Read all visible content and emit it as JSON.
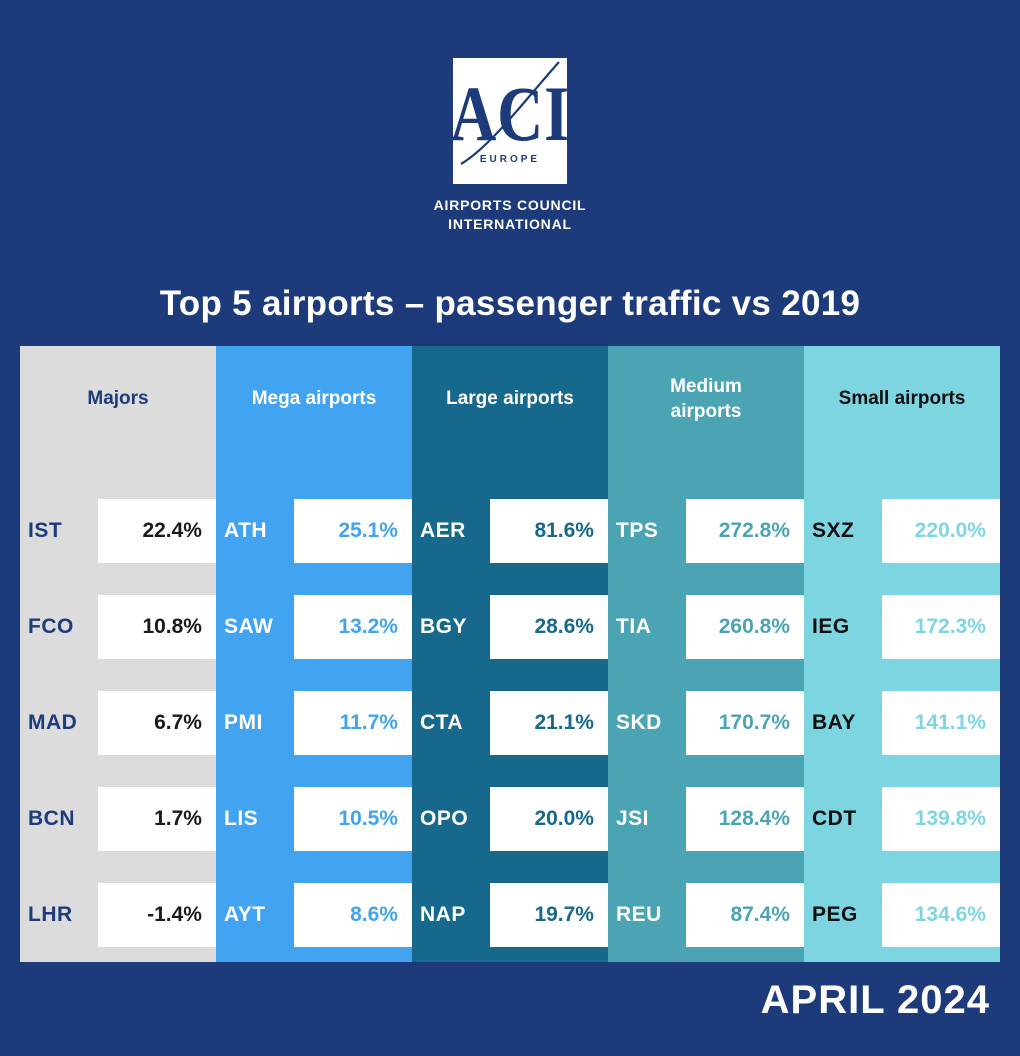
{
  "background_color": "#1d3a7a",
  "logo": {
    "acronym": "ACI",
    "region": "EUROPE",
    "caption_line1": "AIRPORTS COUNCIL",
    "caption_line2": "INTERNATIONAL"
  },
  "title": "Top 5 airports – passenger traffic vs 2019",
  "footer": "APRIL 2024",
  "chart_data": {
    "type": "table",
    "title": "Top 5 airports – passenger traffic vs 2019",
    "period": "APRIL 2024",
    "groups": [
      {
        "label": "Majors",
        "color": "#dcdcdc",
        "header_text_color": "#1d3a7a",
        "code_text_color": "#1d3a7a",
        "value_text_color": "#1a1a1a",
        "rows": [
          {
            "code": "IST",
            "value": "22.4%"
          },
          {
            "code": "FCO",
            "value": "10.8%"
          },
          {
            "code": "MAD",
            "value": "6.7%"
          },
          {
            "code": "BCN",
            "value": "1.7%"
          },
          {
            "code": "LHR",
            "value": "-1.4%"
          }
        ]
      },
      {
        "label": "Mega airports",
        "color": "#42a4f0",
        "header_text_color": "#ffffff",
        "code_text_color": "#ffffff",
        "value_text_color": "#42a4f0",
        "rows": [
          {
            "code": "ATH",
            "value": "25.1%"
          },
          {
            "code": "SAW",
            "value": "13.2%"
          },
          {
            "code": "PMI",
            "value": "11.7%"
          },
          {
            "code": "LIS",
            "value": "10.5%"
          },
          {
            "code": "AYT",
            "value": "8.6%"
          }
        ]
      },
      {
        "label": "Large airports",
        "color": "#16688c",
        "header_text_color": "#ffffff",
        "code_text_color": "#ffffff",
        "value_text_color": "#16688c",
        "rows": [
          {
            "code": "AER",
            "value": "81.6%"
          },
          {
            "code": "BGY",
            "value": "28.6%"
          },
          {
            "code": "CTA",
            "value": "21.1%"
          },
          {
            "code": "OPO",
            "value": "20.0%"
          },
          {
            "code": "NAP",
            "value": "19.7%"
          }
        ]
      },
      {
        "label": "Medium\nairports",
        "color": "#4ba4b4",
        "header_text_color": "#ffffff",
        "code_text_color": "#ffffff",
        "value_text_color": "#4ba4b4",
        "rows": [
          {
            "code": "TPS",
            "value": "272.8%"
          },
          {
            "code": "TIA",
            "value": "260.8%"
          },
          {
            "code": "SKD",
            "value": "170.7%"
          },
          {
            "code": "JSI",
            "value": "128.4%"
          },
          {
            "code": "REU",
            "value": "87.4%"
          }
        ]
      },
      {
        "label": "Small airports",
        "color": "#7ed5e2",
        "header_text_color": "#101010",
        "code_text_color": "#101010",
        "value_text_color": "#7ed5e2",
        "rows": [
          {
            "code": "SXZ",
            "value": "220.0%"
          },
          {
            "code": "IEG",
            "value": "172.3%"
          },
          {
            "code": "BAY",
            "value": "141.1%"
          },
          {
            "code": "CDT",
            "value": "139.8%"
          },
          {
            "code": "PEG",
            "value": "134.6%"
          }
        ]
      }
    ]
  }
}
